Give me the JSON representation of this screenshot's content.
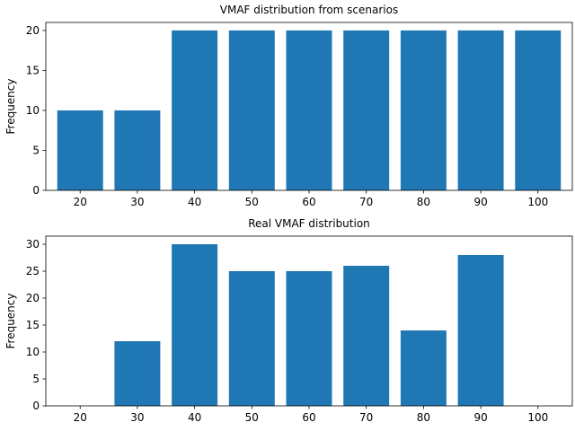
{
  "chart_data": [
    {
      "type": "bar",
      "title": "VMAF distribution from scenarios",
      "xlabel": "",
      "ylabel": "Frequency",
      "categories": [
        "20",
        "30",
        "40",
        "50",
        "60",
        "70",
        "80",
        "90",
        "100"
      ],
      "values": [
        10,
        10,
        20,
        20,
        20,
        20,
        20,
        20,
        20
      ],
      "ylim": [
        0,
        21
      ],
      "yticks": [
        0,
        5,
        10,
        15,
        20
      ],
      "color": "#1f77b4",
      "grid": false
    },
    {
      "type": "bar",
      "title": "Real VMAF distribution",
      "xlabel": "",
      "ylabel": "Frequency",
      "categories": [
        "20",
        "30",
        "40",
        "50",
        "60",
        "70",
        "80",
        "90",
        "100"
      ],
      "values": [
        0,
        12,
        30,
        25,
        25,
        26,
        14,
        28,
        0
      ],
      "ylim": [
        0,
        31.5
      ],
      "yticks": [
        0,
        5,
        10,
        15,
        20,
        25,
        30
      ],
      "color": "#1f77b4",
      "grid": false
    }
  ]
}
